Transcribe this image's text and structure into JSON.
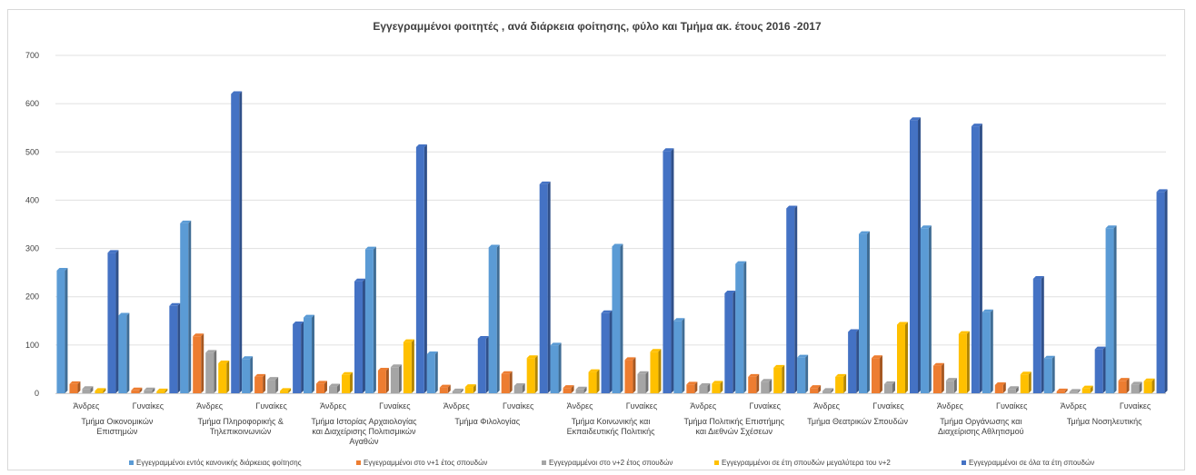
{
  "chart_data": {
    "type": "bar",
    "title": "Εγγεγραμμένοι φοιτητές , ανά διάρκεια φοίτησης, φύλο και Τμήμα ακ. έτους 2016 -2017",
    "ylim": [
      0,
      700
    ],
    "yticks": [
      0,
      100,
      200,
      300,
      400,
      500,
      600,
      700
    ],
    "grid": true,
    "legend_position": "bottom",
    "groups": [
      {
        "label": [
          "Τμήμα Οικονομικών",
          "Επιστημών"
        ],
        "sub": [
          "Άνδρες",
          "Γυναίκες"
        ]
      },
      {
        "label": [
          "Τμήμα Πληροφορικής &",
          "Τηλεπικοινωνιών"
        ],
        "sub": [
          "Άνδρες",
          "Γυναίκες"
        ]
      },
      {
        "label": [
          "Τμήμα Ιστορίας Αρχαιολογίας",
          "και Διαχείρισης Πολιτισμικών",
          "Αγαθών"
        ],
        "sub": [
          "Άνδρες",
          "Γυναίκες"
        ]
      },
      {
        "label": [
          "Τμήμα Φιλολογίας"
        ],
        "sub": [
          "Άνδρες",
          "Γυναίκες"
        ]
      },
      {
        "label": [
          "Τμήμα Κοινωνικής και",
          "Εκπαιδευτικής Πολιτικής"
        ],
        "sub": [
          "Άνδρες",
          "Γυναίκες"
        ]
      },
      {
        "label": [
          "Τμήμα Πολιτικής Επιστήμης",
          "και Διεθνών Σχέσεων"
        ],
        "sub": [
          "Άνδρες",
          "Γυναίκες"
        ]
      },
      {
        "label": [
          "Τμήμα Θεατρικών Σπουδών"
        ],
        "sub": [
          "Άνδρες",
          "Γυναίκες"
        ]
      },
      {
        "label": [
          "Τμήμα Οργάνωσης και",
          "Διαχείρισης Αθλητισμού"
        ],
        "sub": [
          "Άνδρες",
          "Γυναίκες"
        ]
      },
      {
        "label": [
          "Τμήμα Νοσηλευτικής"
        ],
        "sub": [
          "Άνδρες",
          "Γυναίκες"
        ]
      }
    ],
    "series": [
      {
        "name": "Εγγεγραμμένοι εντός κανονικής διάρκειας φοίτησης",
        "color": "#5b9bd5",
        "values": [
          254,
          161,
          352,
          71,
          157,
          298,
          81,
          302,
          99,
          304,
          150,
          268,
          74,
          330,
          342,
          168,
          72,
          342
        ]
      },
      {
        "name": "Εγγεγραμμένοι στο ν+1 έτος σπουδών",
        "color": "#ed7d31",
        "values": [
          19,
          6,
          118,
          34,
          20,
          47,
          12,
          40,
          11,
          69,
          18,
          34,
          11,
          73,
          57,
          17,
          4,
          26
        ]
      },
      {
        "name": "Εγγεγραμμένοι στο ν+2 έτος σπουδών",
        "color": "#a5a5a5",
        "values": [
          9,
          6,
          84,
          28,
          14,
          54,
          4,
          15,
          8,
          40,
          15,
          24,
          5,
          19,
          26,
          9,
          3,
          18
        ]
      },
      {
        "name": "Εγγεγραμμένοι σε έτη σπουδών μεγαλύτερα του ν+2",
        "color": "#ffc000",
        "values": [
          5,
          4,
          62,
          5,
          38,
          106,
          13,
          73,
          44,
          86,
          20,
          53,
          34,
          142,
          123,
          39,
          10,
          25
        ]
      },
      {
        "name": "Εγγεγραμμένοι σε όλα τα έτη σπουδών",
        "color": "#4472c4",
        "values": [
          291,
          181,
          620,
          143,
          232,
          510,
          113,
          433,
          166,
          502,
          207,
          383,
          127,
          566,
          553,
          237,
          91,
          417
        ]
      }
    ]
  }
}
